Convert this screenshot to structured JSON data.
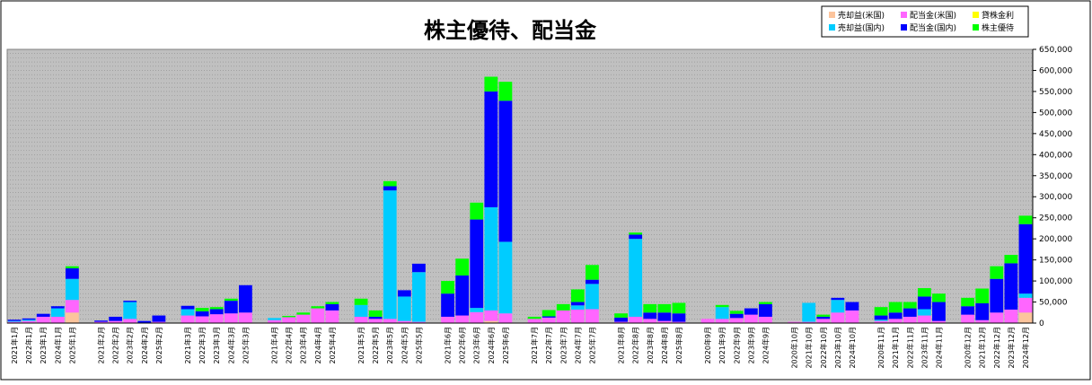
{
  "chart_data": {
    "type": "bar",
    "stacked": true,
    "title": "株主優待、配当金",
    "ylim": [
      0,
      650000
    ],
    "y_ticks": [
      "0",
      "50,000",
      "100,000",
      "150,000",
      "200,000",
      "250,000",
      "300,000",
      "350,000",
      "400,000",
      "450,000",
      "500,000",
      "550,000",
      "600,000",
      "650,000"
    ],
    "grid": true,
    "legend_position": "top-right",
    "categories": [
      "2021年1月",
      "2022年1月",
      "2023年1月",
      "2024年1月",
      "2025年1月",
      "",
      "2021年2月",
      "2022年2月",
      "2023年2月",
      "2024年2月",
      "2025年2月",
      "",
      "2021年3月",
      "2022年3月",
      "2023年3月",
      "2024年3月",
      "2025年3月",
      "",
      "2021年4月",
      "2022年4月",
      "2023年4月",
      "2024年4月",
      "2025年4月",
      "",
      "2021年5月",
      "2022年5月",
      "2023年5月",
      "2024年5月",
      "2025年5月",
      "",
      "2021年6月",
      "2022年6月",
      "2023年6月",
      "2024年6月",
      "2025年6月",
      "",
      "2021年7月",
      "2022年7月",
      "2023年7月",
      "2024年7月",
      "2025年7月",
      "",
      "2021年8月",
      "2022年8月",
      "2023年8月",
      "2024年8月",
      "2025年8月",
      "",
      "2020年9月",
      "2021年9月",
      "2022年9月",
      "2023年9月",
      "2024年9月",
      "",
      "2020年10月",
      "2021年10月",
      "2022年10月",
      "2023年10月",
      "2024年10月",
      "",
      "2020年11月",
      "2021年11月",
      "2022年11月",
      "2023年11月",
      "2024年11月",
      "",
      "2020年12月",
      "2021年12月",
      "2022年12月",
      "2023年12月",
      "2024年12月"
    ],
    "series": [
      {
        "name": "売却益(米国)",
        "color": "#fcc49c",
        "values": [
          0,
          0,
          0,
          0,
          25000,
          null,
          0,
          0,
          0,
          0,
          0,
          null,
          0,
          0,
          0,
          0,
          0,
          null,
          0,
          0,
          0,
          0,
          0,
          null,
          0,
          0,
          0,
          0,
          0,
          null,
          0,
          0,
          0,
          5000,
          0,
          null,
          0,
          0,
          0,
          0,
          0,
          null,
          0,
          0,
          0,
          0,
          0,
          null,
          0,
          0,
          0,
          0,
          0,
          null,
          0,
          0,
          0,
          0,
          0,
          null,
          0,
          0,
          0,
          0,
          0,
          null,
          0,
          0,
          0,
          0,
          25000
        ]
      },
      {
        "name": "配当金(米国)",
        "color": "#ff66ff",
        "values": [
          3000,
          5000,
          15000,
          15000,
          30000,
          null,
          3000,
          5000,
          10000,
          0,
          3000,
          null,
          18000,
          16000,
          21000,
          23000,
          25000,
          null,
          7000,
          14000,
          20000,
          35000,
          30000,
          null,
          15000,
          10000,
          10000,
          5000,
          3000,
          null,
          15000,
          18000,
          26000,
          25000,
          23000,
          null,
          10000,
          13000,
          30000,
          32000,
          33000,
          null,
          3000,
          15000,
          10000,
          5000,
          3000,
          null,
          10000,
          10000,
          12000,
          20000,
          15000,
          null,
          3000,
          3000,
          10000,
          25000,
          30000,
          null,
          5000,
          10000,
          15000,
          18000,
          5000,
          null,
          20000,
          7000,
          25000,
          32000,
          35000
        ]
      },
      {
        "name": "貸株金利",
        "color": "#ffff00",
        "values": [
          0,
          0,
          0,
          0,
          0,
          null,
          0,
          0,
          0,
          0,
          0,
          null,
          0,
          0,
          0,
          0,
          0,
          null,
          0,
          0,
          0,
          0,
          0,
          null,
          0,
          0,
          0,
          0,
          0,
          null,
          0,
          0,
          0,
          0,
          0,
          null,
          0,
          0,
          0,
          0,
          0,
          null,
          0,
          0,
          0,
          0,
          0,
          null,
          0,
          0,
          0,
          0,
          0,
          null,
          0,
          0,
          0,
          0,
          0,
          null,
          0,
          0,
          0,
          0,
          0,
          null,
          0,
          0,
          0,
          0,
          0
        ]
      },
      {
        "name": "売却益(国内)",
        "color": "#00ccff",
        "values": [
          2000,
          3000,
          0,
          20000,
          50000,
          null,
          0,
          0,
          40000,
          0,
          0,
          null,
          15000,
          0,
          0,
          0,
          0,
          null,
          5000,
          0,
          0,
          0,
          0,
          null,
          28000,
          0,
          305000,
          58000,
          118000,
          null,
          0,
          0,
          10000,
          245000,
          170000,
          null,
          0,
          0,
          0,
          10000,
          60000,
          null,
          0,
          185000,
          0,
          0,
          0,
          null,
          0,
          28000,
          0,
          0,
          0,
          null,
          0,
          45000,
          0,
          30000,
          0,
          null,
          3000,
          0,
          0,
          15000,
          0,
          null,
          0,
          0,
          0,
          0,
          10000
        ]
      },
      {
        "name": "配当金(国内)",
        "color": "#0000ff",
        "values": [
          3000,
          3000,
          7000,
          5000,
          25000,
          null,
          3000,
          10000,
          3000,
          5000,
          15000,
          null,
          8000,
          12000,
          12000,
          30000,
          65000,
          null,
          0,
          0,
          0,
          0,
          15000,
          null,
          0,
          5000,
          10000,
          15000,
          20000,
          null,
          55000,
          95000,
          210000,
          275000,
          335000,
          null,
          0,
          3000,
          0,
          8000,
          10000,
          null,
          10000,
          10000,
          15000,
          20000,
          20000,
          null,
          0,
          0,
          10000,
          15000,
          30000,
          null,
          0,
          0,
          5000,
          5000,
          20000,
          null,
          10000,
          15000,
          20000,
          30000,
          45000,
          null,
          20000,
          40000,
          80000,
          110000,
          165000
        ]
      },
      {
        "name": "株主優待",
        "color": "#00ff00",
        "values": [
          0,
          0,
          0,
          0,
          5000,
          null,
          0,
          0,
          0,
          0,
          0,
          null,
          0,
          8000,
          5000,
          5000,
          0,
          null,
          0,
          3000,
          5000,
          5000,
          5000,
          null,
          15000,
          15000,
          12000,
          0,
          0,
          null,
          30000,
          40000,
          40000,
          35000,
          45000,
          null,
          5000,
          15000,
          15000,
          30000,
          35000,
          null,
          10000,
          5000,
          20000,
          20000,
          25000,
          null,
          0,
          5000,
          7000,
          0,
          5000,
          null,
          0,
          0,
          5000,
          0,
          0,
          null,
          20000,
          25000,
          15000,
          20000,
          20000,
          null,
          20000,
          35000,
          30000,
          20000,
          20000
        ]
      }
    ]
  }
}
